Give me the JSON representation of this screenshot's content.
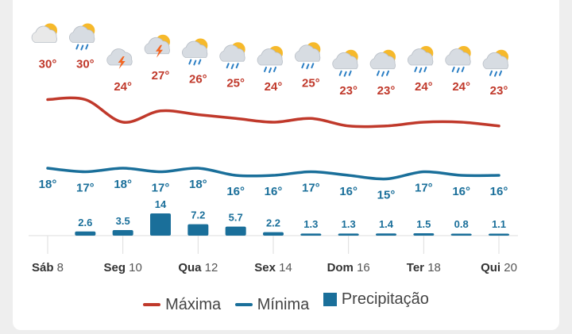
{
  "colors": {
    "max": "#c0392b",
    "min": "#1a6f9a",
    "precip": "#1a6f9a",
    "axis": "#dddddd"
  },
  "chart_data": {
    "type": "line",
    "x_day_labels": [
      "Sáb",
      "",
      "Seg",
      "",
      "Qua",
      "",
      "Sex",
      "",
      "Dom",
      "",
      "Ter",
      "",
      "Qui"
    ],
    "x_num_labels": [
      "8",
      "",
      "10",
      "",
      "12",
      "",
      "14",
      "",
      "16",
      "",
      "18",
      "",
      "20"
    ],
    "weather_icons": [
      "partly-cloudy-icon",
      "partly-cloudy-rain-icon",
      "thunderstorm-icon",
      "partly-cloudy-thunderstorm-icon",
      "partly-cloudy-rain-icon",
      "partly-cloudy-rain-icon",
      "partly-cloudy-rain-icon",
      "partly-cloudy-rain-icon",
      "partly-cloudy-rain-icon",
      "partly-cloudy-rain-icon",
      "partly-cloudy-rain-icon",
      "partly-cloudy-rain-icon",
      "partly-cloudy-rain-icon"
    ],
    "series": [
      {
        "name": "Máxima",
        "values": [
          30,
          30,
          24,
          27,
          26,
          25,
          24,
          25,
          23,
          23,
          24,
          24,
          23
        ],
        "labels": [
          "30°",
          "30°",
          "24°",
          "27°",
          "26°",
          "25°",
          "24°",
          "25°",
          "23°",
          "23°",
          "24°",
          "24°",
          "23°"
        ]
      },
      {
        "name": "Mínima",
        "values": [
          18,
          17,
          18,
          17,
          18,
          16,
          16,
          17,
          16,
          15,
          17,
          16,
          16
        ],
        "labels": [
          "18°",
          "17°",
          "18°",
          "17°",
          "18°",
          "16°",
          "16°",
          "17°",
          "16°",
          "15°",
          "17°",
          "16°",
          "16°"
        ]
      },
      {
        "name": "Precipitação",
        "values": [
          0,
          2.6,
          3.5,
          14,
          7.2,
          5.7,
          2.2,
          1.3,
          1.3,
          1.4,
          1.5,
          0.8,
          1.1
        ],
        "labels": [
          "",
          "2.6",
          "3.5",
          "14",
          "7.2",
          "5.7",
          "2.2",
          "1.3",
          "1.3",
          "1.4",
          "1.5",
          "0.8",
          "1.1"
        ]
      }
    ],
    "legend": {
      "position": "bottom",
      "items": [
        "Máxima",
        "Mínima",
        "Precipitação"
      ]
    },
    "grid": false
  }
}
